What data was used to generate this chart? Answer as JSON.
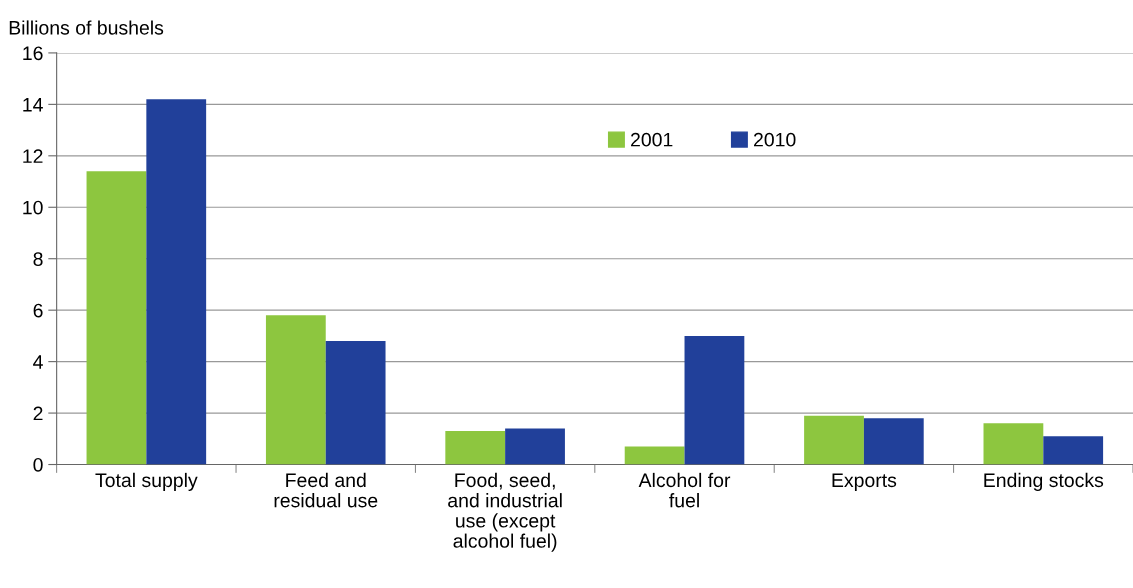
{
  "chart_data": {
    "type": "bar",
    "ylabel": "Billions of bushels",
    "categories": [
      "Total supply",
      "Feed and\nresidual use",
      "Food, seed,\nand industrial\nuse (except\nalcohol fuel)",
      "Alcohol for\nfuel",
      "Exports",
      "Ending stocks"
    ],
    "series": [
      {
        "name": "2001",
        "color": "#8dc63f",
        "values": [
          11.4,
          5.8,
          1.3,
          0.7,
          1.9,
          1.6
        ]
      },
      {
        "name": "2010",
        "color": "#21409a",
        "values": [
          14.2,
          4.8,
          1.4,
          5.0,
          1.8,
          1.1
        ]
      }
    ],
    "ylim": [
      0,
      16
    ],
    "yticks": [
      0,
      2,
      4,
      6,
      8,
      10,
      12,
      14,
      16
    ],
    "grid": "y",
    "legend": "top"
  }
}
